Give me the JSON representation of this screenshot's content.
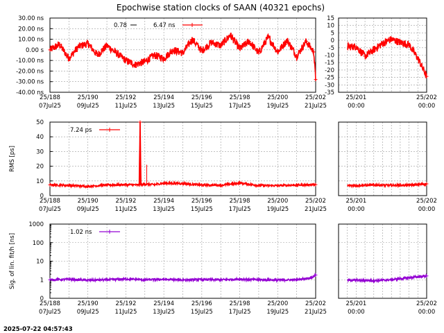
{
  "title": "Epochwise station clocks of SAAN (40321 epochs)",
  "timestamp": "2025-07-22 04:57:43",
  "colors": {
    "red": "#ff0000",
    "purple": "#9400d3",
    "grid": "#9a9a9a"
  },
  "chart_data": [
    {
      "type": "line",
      "panel": "clock",
      "ylabel": "",
      "ylim": [
        -40,
        30
      ],
      "left_yticks": [
        "30.00 ns",
        "20.00 ns",
        "10.00 ns",
        "0.00  s",
        "-10.00 ns",
        "-20.00 ns",
        "-30.00 ns",
        "-40.00 ns"
      ],
      "right_yticks": [
        "15",
        "10",
        "5",
        "0",
        "-5",
        "-10",
        "-15",
        "-20",
        "-25",
        "-30",
        "-35"
      ],
      "right_ylim": [
        -35,
        15
      ],
      "legend": [
        "0.78",
        "6.47 ns"
      ],
      "series": [
        {
          "x": [
            188,
            188.5,
            189,
            189.5,
            190,
            190.5,
            191,
            191.5,
            192,
            192.5,
            193,
            193.5,
            194,
            194.5,
            195,
            195.5,
            196,
            196.5,
            197,
            197.5,
            198,
            198.5,
            199,
            199.5,
            200,
            200.5,
            201,
            201.5,
            201.9,
            202
          ],
          "y": [
            0,
            5,
            -8,
            3,
            6,
            -5,
            4,
            -3,
            -10,
            -14,
            -11,
            -5,
            -8,
            0,
            -3,
            10,
            -1,
            7,
            4,
            14,
            1,
            8,
            -3,
            12,
            -2,
            9,
            -6,
            8,
            -2,
            -28
          ]
        }
      ],
      "zoom_series": [
        {
          "x": [
            201.6,
            201.65,
            201.7,
            201.75,
            201.8,
            201.85,
            201.9,
            201.95,
            202
          ],
          "y": [
            3,
            -6,
            0,
            6,
            10,
            7,
            5,
            -8,
            -25
          ]
        }
      ]
    },
    {
      "type": "line",
      "panel": "rms",
      "ylabel": "RMS [ps]",
      "ylim": [
        0,
        50
      ],
      "left_yticks": [
        "50",
        "40",
        "30",
        "20",
        "10",
        "0"
      ],
      "legend": [
        "7.24 ps"
      ],
      "series": [
        {
          "x": [
            188,
            189,
            190,
            191,
            192,
            192.7,
            192.75,
            192.8,
            193,
            193.5,
            194,
            195,
            196,
            197,
            198,
            199,
            200,
            201,
            202
          ],
          "y": [
            7.3,
            7.0,
            6.3,
            7.2,
            7.5,
            7.2,
            50,
            7.4,
            7.8,
            7.5,
            8.5,
            8.2,
            7.2,
            7.1,
            8.6,
            6.9,
            6.8,
            7.2,
            7.5
          ]
        }
      ],
      "zoom_series": [
        {
          "x": [
            201.6,
            201.7,
            201.8,
            201.9,
            202
          ],
          "y": [
            6.8,
            7.2,
            7.0,
            7.1,
            8.0
          ]
        }
      ]
    },
    {
      "type": "line",
      "panel": "sigma",
      "ylabel": "Sig. of lin. fit/h [ns]",
      "yscale": "log",
      "ylim": [
        0.1,
        1000
      ],
      "left_yticks": [
        "1000",
        "100",
        "10",
        "1",
        "0"
      ],
      "legend": [
        "1.02 ns"
      ],
      "series": [
        {
          "x": [
            188,
            189,
            190,
            191,
            192,
            193,
            194,
            195,
            196,
            197,
            198,
            199,
            200,
            201,
            201.8,
            202
          ],
          "y": [
            1.0,
            1.05,
            0.95,
            1.0,
            1.1,
            1.0,
            1.05,
            0.98,
            1.02,
            1.0,
            1.08,
            1.0,
            0.97,
            1.0,
            1.3,
            1.8
          ]
        }
      ],
      "zoom_series": [
        {
          "x": [
            201.6,
            201.7,
            201.8,
            201.9,
            202
          ],
          "y": [
            0.95,
            0.9,
            1.0,
            1.3,
            1.6
          ]
        }
      ]
    }
  ],
  "xaxis": {
    "main_ticks": [
      {
        "top": "25/188",
        "bottom": "07Jul25"
      },
      {
        "top": "25/190",
        "bottom": "09Jul25"
      },
      {
        "top": "25/192",
        "bottom": "11Jul25"
      },
      {
        "top": "25/194",
        "bottom": "13Jul25"
      },
      {
        "top": "25/196",
        "bottom": "15Jul25"
      },
      {
        "top": "25/198",
        "bottom": "17Jul25"
      },
      {
        "top": "25/200",
        "bottom": "19Jul25"
      },
      {
        "top": "25/202",
        "bottom": "21Jul25"
      }
    ],
    "zoom_ticks": [
      {
        "top": "25/201",
        "bottom": "00:00"
      },
      {
        "top": "25/202",
        "bottom": "00:00"
      }
    ]
  }
}
